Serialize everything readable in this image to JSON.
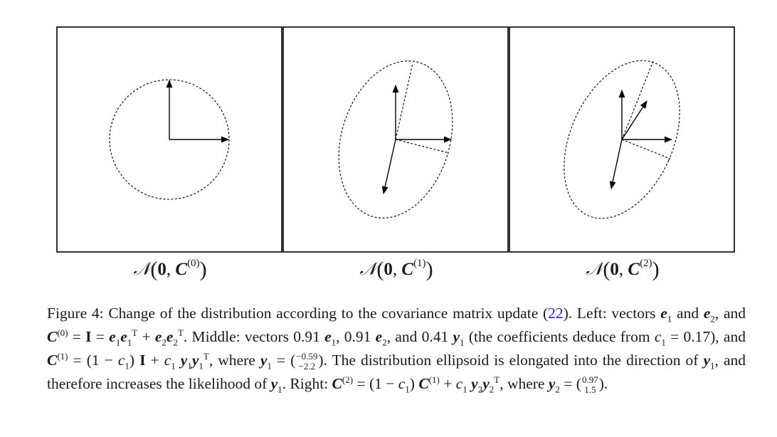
{
  "panels": [
    {
      "label_prefix": "𝒩",
      "label_zero": "0",
      "label_matrix": "C",
      "label_sup": "(0)"
    },
    {
      "label_prefix": "𝒩",
      "label_zero": "0",
      "label_matrix": "C",
      "label_sup": "(1)"
    },
    {
      "label_prefix": "𝒩",
      "label_zero": "0",
      "label_matrix": "C",
      "label_sup": "(2)"
    }
  ],
  "caption": {
    "figure_label": "Figure 4:",
    "text_1": "Change of the distribution according to the covariance matrix update (",
    "eq_ref": "22",
    "text_2": "). Left: vectors ",
    "text_3": " and ",
    "text_4": ", and ",
    "text_5": ". Middle: vectors 0.91 ",
    "text_6": ", 0.91 ",
    "text_7": ", and 0.41 ",
    "text_8": " (the coefficients deduce from ",
    "text_9": " = 0.17), and ",
    "text_10": ", where ",
    "text_11": ". The distribution ellipsoid is elongated into the direction of ",
    "text_12": ", and therefore increases the likelihood of ",
    "text_13": ". Right: ",
    "text_14": ", where ",
    "y1_vec": [
      "−0.59",
      "−2.2"
    ],
    "y2_vec": [
      "0.97",
      "1.5"
    ]
  }
}
